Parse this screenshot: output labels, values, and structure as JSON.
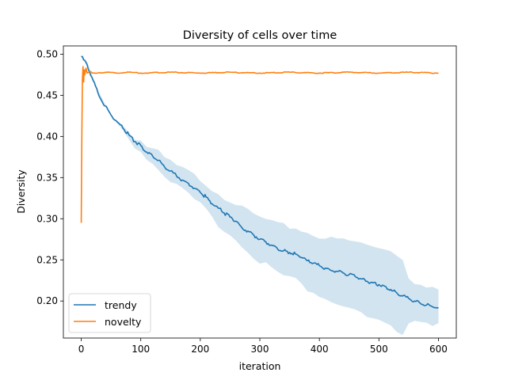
{
  "chart_data": {
    "type": "line",
    "title": "Diversity of cells over time",
    "xlabel": "iteration",
    "ylabel": "Diversity",
    "xlim": [
      -30,
      630
    ],
    "ylim": [
      0.155,
      0.51
    ],
    "x_ticks": [
      0,
      100,
      200,
      300,
      400,
      500,
      600
    ],
    "y_ticks": [
      0.2,
      0.25,
      0.3,
      0.35,
      0.4,
      0.45,
      0.5
    ],
    "grid": false,
    "legend_position": "lower-left",
    "series": [
      {
        "name": "trendy",
        "color": "#1f77b4",
        "band_color": "#1f77b4",
        "x": [
          0,
          10,
          20,
          30,
          40,
          50,
          60,
          70,
          80,
          90,
          100,
          110,
          120,
          130,
          140,
          150,
          160,
          170,
          180,
          190,
          200,
          210,
          220,
          230,
          240,
          250,
          260,
          270,
          280,
          290,
          300,
          310,
          320,
          330,
          340,
          350,
          360,
          370,
          380,
          390,
          400,
          410,
          420,
          430,
          440,
          450,
          460,
          470,
          480,
          490,
          500,
          510,
          520,
          530,
          540,
          550,
          560,
          570,
          580,
          590,
          600
        ],
        "values": [
          0.497,
          0.487,
          0.468,
          0.449,
          0.437,
          0.426,
          0.418,
          0.41,
          0.402,
          0.394,
          0.389,
          0.381,
          0.376,
          0.371,
          0.363,
          0.358,
          0.352,
          0.347,
          0.343,
          0.337,
          0.332,
          0.326,
          0.318,
          0.313,
          0.307,
          0.302,
          0.297,
          0.289,
          0.285,
          0.28,
          0.275,
          0.272,
          0.268,
          0.263,
          0.261,
          0.259,
          0.257,
          0.253,
          0.249,
          0.246,
          0.243,
          0.24,
          0.237,
          0.236,
          0.234,
          0.232,
          0.23,
          0.227,
          0.224,
          0.222,
          0.22,
          0.218,
          0.214,
          0.21,
          0.206,
          0.203,
          0.2,
          0.197,
          0.195,
          0.193,
          0.192
        ],
        "lower": [
          0.497,
          0.485,
          0.466,
          0.447,
          0.435,
          0.424,
          0.416,
          0.407,
          0.398,
          0.389,
          0.383,
          0.374,
          0.368,
          0.362,
          0.353,
          0.347,
          0.34,
          0.334,
          0.329,
          0.322,
          0.316,
          0.309,
          0.3,
          0.294,
          0.287,
          0.281,
          0.275,
          0.266,
          0.261,
          0.255,
          0.249,
          0.245,
          0.24,
          0.234,
          0.231,
          0.228,
          0.225,
          0.22,
          0.215,
          0.211,
          0.207,
          0.203,
          0.199,
          0.197,
          0.194,
          0.191,
          0.188,
          0.184,
          0.18,
          0.177,
          0.174,
          0.171,
          0.167,
          0.163,
          0.159,
          0.176,
          0.176,
          0.175,
          0.174,
          0.172,
          0.17
        ],
        "upper": [
          0.497,
          0.489,
          0.47,
          0.451,
          0.439,
          0.428,
          0.421,
          0.413,
          0.406,
          0.399,
          0.395,
          0.388,
          0.384,
          0.38,
          0.373,
          0.369,
          0.364,
          0.36,
          0.357,
          0.352,
          0.348,
          0.343,
          0.336,
          0.332,
          0.327,
          0.323,
          0.319,
          0.312,
          0.309,
          0.305,
          0.301,
          0.299,
          0.296,
          0.292,
          0.291,
          0.29,
          0.289,
          0.286,
          0.283,
          0.281,
          0.279,
          0.277,
          0.275,
          0.275,
          0.274,
          0.273,
          0.272,
          0.27,
          0.268,
          0.267,
          0.266,
          0.265,
          0.261,
          0.257,
          0.253,
          0.23,
          0.224,
          0.219,
          0.216,
          0.214,
          0.214
        ]
      },
      {
        "name": "novelty",
        "color": "#ff7f0e",
        "x": [
          0,
          1,
          2,
          3,
          4,
          5,
          6,
          8,
          10,
          15,
          20,
          40,
          60,
          80,
          100,
          150,
          200,
          250,
          300,
          350,
          400,
          450,
          500,
          550,
          600
        ],
        "values": [
          0.295,
          0.4,
          0.47,
          0.485,
          0.466,
          0.481,
          0.475,
          0.483,
          0.477,
          0.479,
          0.477,
          0.478,
          0.477,
          0.478,
          0.477,
          0.478,
          0.477,
          0.478,
          0.477,
          0.478,
          0.477,
          0.478,
          0.477,
          0.478,
          0.477
        ]
      }
    ]
  }
}
